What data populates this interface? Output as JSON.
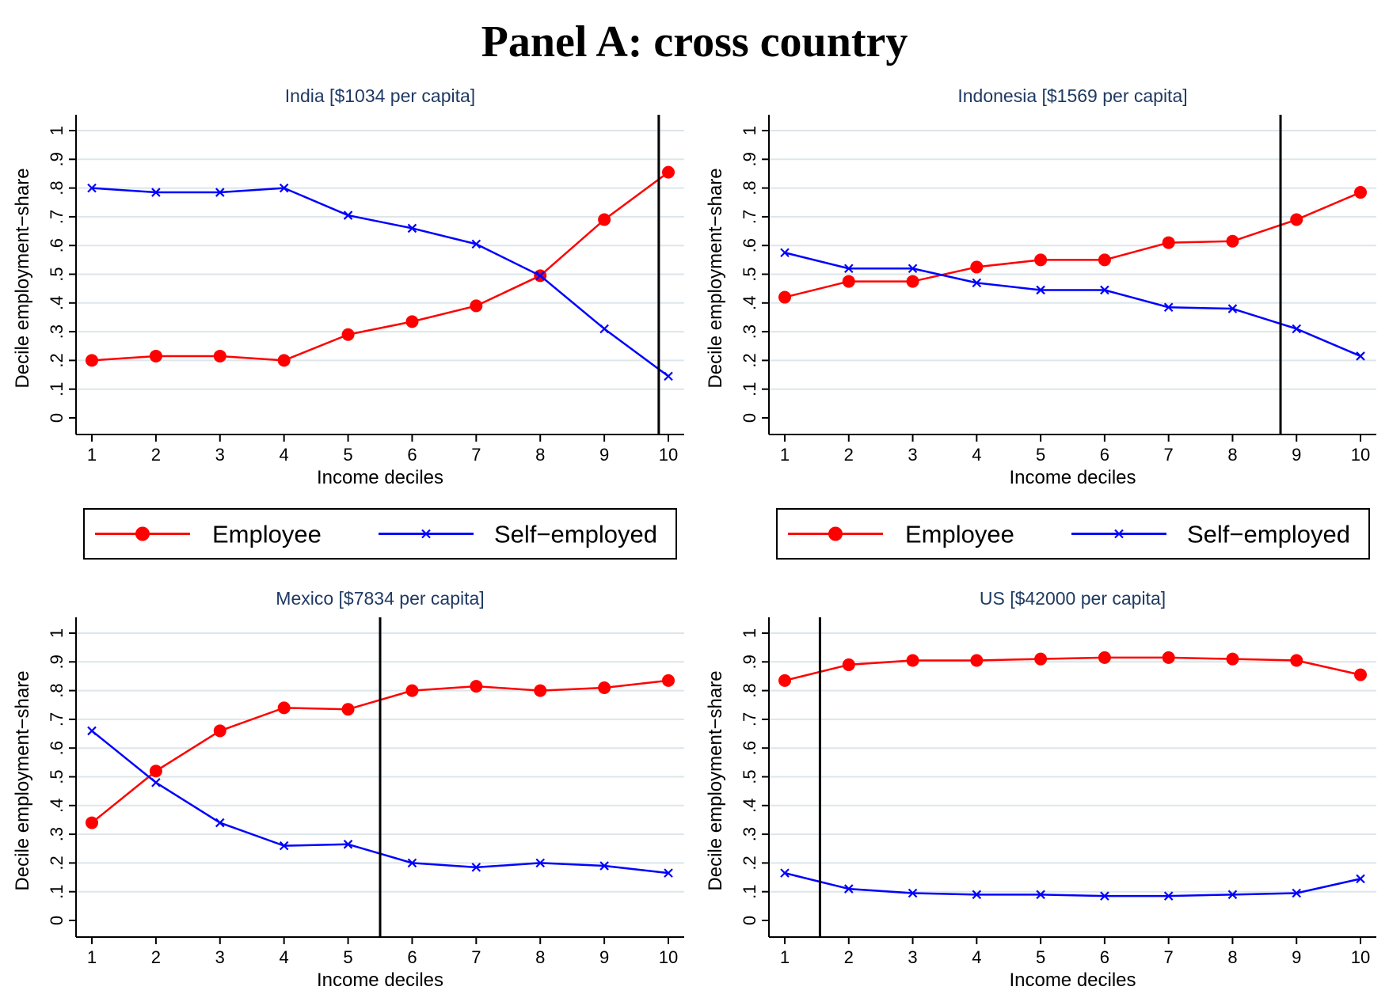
{
  "figure_title": "Panel A: cross country",
  "legend": {
    "employee_label": "Employee",
    "self_employed_label": "Self−employed"
  },
  "colors": {
    "employee": "#ff0000",
    "self_employed": "#0000ff",
    "grid": "#dde6ea",
    "vline": "#000000",
    "panel_title": "#1f3a64"
  },
  "chart_data": [
    {
      "type": "line",
      "title": "India [$1034 per capita]",
      "xlabel": "Income deciles",
      "ylabel": "Decile employment−share",
      "x": [
        1,
        2,
        3,
        4,
        5,
        6,
        7,
        8,
        9,
        10
      ],
      "ylim": [
        0,
        1
      ],
      "yticks": [
        "0",
        ".1",
        ".2",
        ".3",
        ".4",
        ".5",
        ".6",
        ".7",
        ".8",
        ".9",
        "1"
      ],
      "grid": true,
      "vline_x": 9.85,
      "series": [
        {
          "name": "Employee",
          "marker": "circle",
          "values": [
            0.2,
            0.215,
            0.215,
            0.2,
            0.29,
            0.335,
            0.39,
            0.495,
            0.69,
            0.855
          ]
        },
        {
          "name": "Self−employed",
          "marker": "x",
          "values": [
            0.8,
            0.785,
            0.785,
            0.8,
            0.705,
            0.66,
            0.605,
            0.495,
            0.31,
            0.145
          ]
        }
      ]
    },
    {
      "type": "line",
      "title": "Indonesia [$1569 per capita]",
      "xlabel": "Income deciles",
      "ylabel": "Decile employment−share",
      "x": [
        1,
        2,
        3,
        4,
        5,
        6,
        7,
        8,
        9,
        10
      ],
      "ylim": [
        0,
        1
      ],
      "yticks": [
        "0",
        ".1",
        ".2",
        ".3",
        ".4",
        ".5",
        ".6",
        ".7",
        ".8",
        ".9",
        "1"
      ],
      "grid": true,
      "vline_x": 8.75,
      "series": [
        {
          "name": "Employee",
          "marker": "circle",
          "values": [
            0.42,
            0.475,
            0.475,
            0.525,
            0.55,
            0.55,
            0.61,
            0.615,
            0.69,
            0.785
          ]
        },
        {
          "name": "Self−employed",
          "marker": "x",
          "values": [
            0.575,
            0.52,
            0.52,
            0.47,
            0.445,
            0.445,
            0.385,
            0.38,
            0.31,
            0.215
          ]
        }
      ]
    },
    {
      "type": "line",
      "title": "Mexico [$7834 per capita]",
      "xlabel": "Income deciles",
      "ylabel": "Decile employment−share",
      "x": [
        1,
        2,
        3,
        4,
        5,
        6,
        7,
        8,
        9,
        10
      ],
      "ylim": [
        0,
        1
      ],
      "yticks": [
        "0",
        ".1",
        ".2",
        ".3",
        ".4",
        ".5",
        ".6",
        ".7",
        ".8",
        ".9",
        "1"
      ],
      "grid": true,
      "vline_x": 5.5,
      "series": [
        {
          "name": "Employee",
          "marker": "circle",
          "values": [
            0.34,
            0.52,
            0.66,
            0.74,
            0.735,
            0.8,
            0.815,
            0.8,
            0.81,
            0.835
          ]
        },
        {
          "name": "Self−employed",
          "marker": "x",
          "values": [
            0.66,
            0.48,
            0.34,
            0.26,
            0.265,
            0.2,
            0.185,
            0.2,
            0.19,
            0.165
          ]
        }
      ]
    },
    {
      "type": "line",
      "title": "US [$42000 per capita]",
      "xlabel": "Income deciles",
      "ylabel": "Decile employment−share",
      "x": [
        1,
        2,
        3,
        4,
        5,
        6,
        7,
        8,
        9,
        10
      ],
      "ylim": [
        0,
        1
      ],
      "yticks": [
        "0",
        ".1",
        ".2",
        ".3",
        ".4",
        ".5",
        ".6",
        ".7",
        ".8",
        ".9",
        "1"
      ],
      "grid": true,
      "vline_x": 1.55,
      "series": [
        {
          "name": "Employee",
          "marker": "circle",
          "values": [
            0.835,
            0.89,
            0.905,
            0.905,
            0.91,
            0.915,
            0.915,
            0.91,
            0.905,
            0.855
          ]
        },
        {
          "name": "Self−employed",
          "marker": "x",
          "values": [
            0.165,
            0.11,
            0.095,
            0.09,
            0.09,
            0.085,
            0.085,
            0.09,
            0.095,
            0.145
          ]
        }
      ]
    }
  ]
}
